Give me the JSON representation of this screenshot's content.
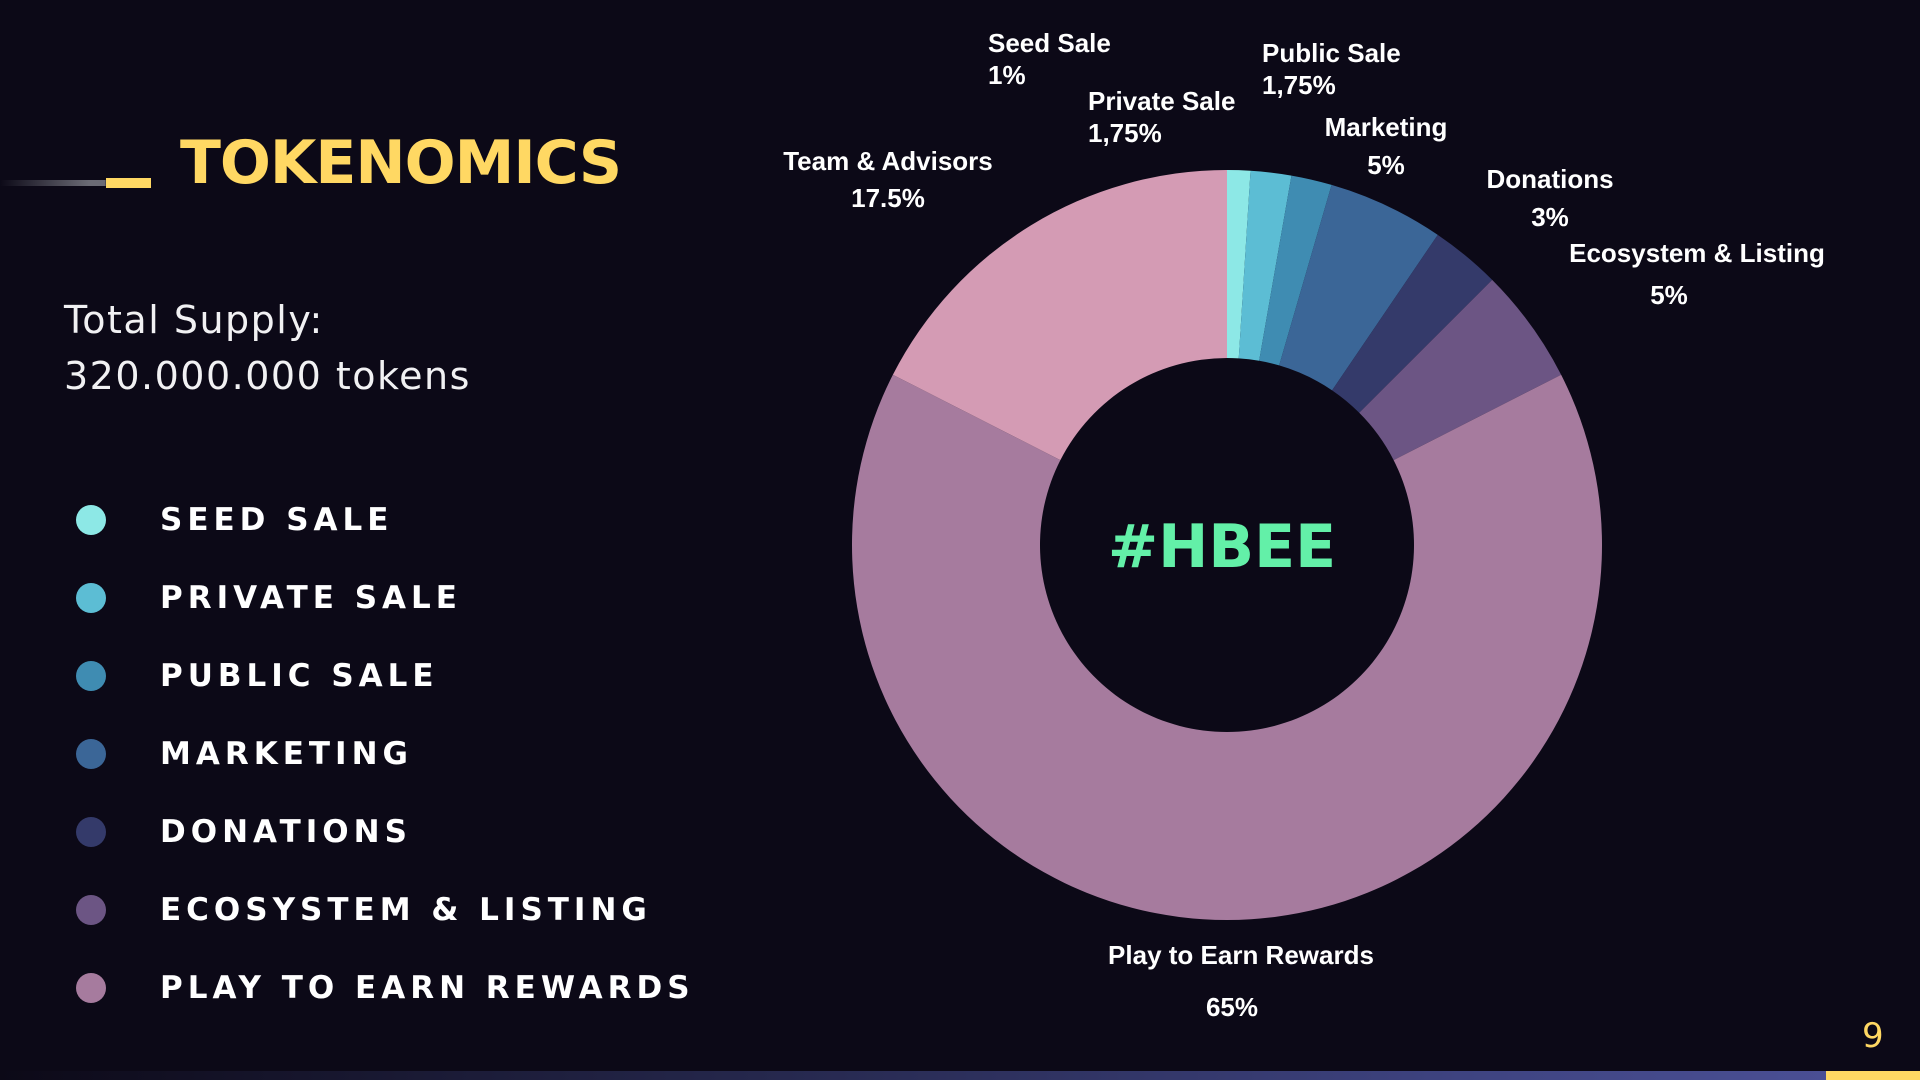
{
  "header": {
    "title": "TOKENOMICS"
  },
  "supply": {
    "line1": "Total Supply:",
    "line2": "320.000.000 tokens"
  },
  "legend": [
    {
      "label": "SEED SALE",
      "color": "#8de8e6"
    },
    {
      "label": "PRIVATE SALE",
      "color": "#5cbdd4"
    },
    {
      "label": "PUBLIC SALE",
      "color": "#3f8cb2"
    },
    {
      "label": "MARKETING",
      "color": "#3b6697"
    },
    {
      "label": "DONATIONS",
      "color": "#343a6a"
    },
    {
      "label": "ECOSYSTEM & LISTING",
      "color": "#6c5584"
    },
    {
      "label": "PLAY TO EARN REWARDS",
      "color": "#a67b9e"
    }
  ],
  "chart_data": {
    "type": "pie",
    "variant": "donut",
    "center_label": "#HBEE",
    "slices": [
      {
        "name": "Seed Sale",
        "value": 1,
        "value_label": "1%",
        "color": "#8de8e6"
      },
      {
        "name": "Private Sale",
        "value": 1.75,
        "value_label": "1,75%",
        "color": "#5cbdd4"
      },
      {
        "name": "Public Sale",
        "value": 1.75,
        "value_label": "1,75%",
        "color": "#3f8cb2"
      },
      {
        "name": "Marketing",
        "value": 5,
        "value_label": "5%",
        "color": "#3b6697"
      },
      {
        "name": "Donations",
        "value": 3,
        "value_label": "3%",
        "color": "#343a6a"
      },
      {
        "name": "Ecosystem & Listing",
        "value": 5,
        "value_label": "5%",
        "color": "#6c5584"
      },
      {
        "name": "Play to Earn Rewards",
        "value": 65,
        "value_label": "65%",
        "color": "#a67b9e"
      },
      {
        "name": "Team & Advisors",
        "value": 17.5,
        "value_label": "17.5%",
        "color": "#d49bb4"
      }
    ]
  },
  "page_number": "9"
}
